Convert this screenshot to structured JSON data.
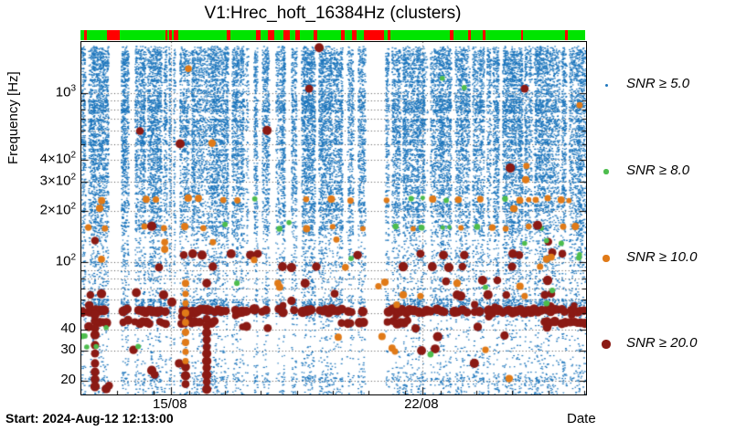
{
  "header": {
    "title": "V1:Hrec_hoft_16384Hz (clusters)"
  },
  "footer": {
    "start_label": "Start: 2024-Aug-12 12:13:00",
    "xaxis_title": "Date"
  },
  "colors": {
    "blue": "#1d76bd",
    "green": "#4dbd4d",
    "orange": "#e07a18",
    "dark_red": "#8b1a14",
    "bar_green": "#00e400",
    "bar_red": "#ff0000",
    "grid": "#222222",
    "axis": "#000000"
  },
  "yaxis": {
    "title": "Frequency [Hz]",
    "scale": "log",
    "min": 16.5,
    "max": 2000,
    "ticks": [
      {
        "base": "10",
        "sup": "3",
        "value": 1000
      },
      {
        "base": "4×10",
        "sup": "2",
        "value": 400
      },
      {
        "base": "3×10",
        "sup": "2",
        "value": 300
      },
      {
        "base": "2×10",
        "sup": "2",
        "value": 200
      },
      {
        "base": "10",
        "sup": "2",
        "value": 100
      },
      {
        "base": "40",
        "sup": "",
        "value": 40
      },
      {
        "base": "30",
        "sup": "",
        "value": 30
      },
      {
        "base": "20",
        "sup": "",
        "value": 20
      }
    ],
    "grid_values": [
      20,
      30,
      40,
      50,
      60,
      70,
      80,
      90,
      100,
      200,
      300,
      400,
      500,
      600,
      700,
      800,
      900,
      1000
    ],
    "major_values": [
      20,
      30,
      40,
      100,
      200,
      300,
      400,
      1000
    ]
  },
  "xaxis": {
    "span_days": 14.05,
    "ticks": [
      {
        "label": "15/08",
        "day": 2.49
      },
      {
        "label": "22/08",
        "day": 9.49
      }
    ],
    "minor_tick_every_days": 1
  },
  "legend": {
    "items": [
      {
        "label": "SNR ≥ 5.0",
        "color_key": "blue",
        "radius": 1.5,
        "y": 93
      },
      {
        "label": "SNR ≥ 8.0",
        "color_key": "green",
        "radius": 2.6,
        "y": 188
      },
      {
        "label": "SNR ≥ 10.0",
        "color_key": "orange",
        "radius": 3.6,
        "y": 283
      },
      {
        "label": "SNR ≥ 20.0",
        "color_key": "dark_red",
        "radius": 4.6,
        "y": 377
      }
    ]
  },
  "status_bar": {
    "on_color_key": "bar_green",
    "off_color_key": "bar_red",
    "off_segments": [
      [
        0.007,
        0.013
      ],
      [
        0.0525,
        0.0779
      ],
      [
        0.1685,
        0.1721
      ],
      [
        0.1757,
        0.1812
      ],
      [
        0.1848,
        0.1938
      ],
      [
        0.2899,
        0.2971
      ],
      [
        0.3478,
        0.3569
      ],
      [
        0.3714,
        0.3841
      ],
      [
        0.4022,
        0.4149
      ],
      [
        0.4257,
        0.4348
      ],
      [
        0.462,
        0.4692
      ],
      [
        0.5163,
        0.5235
      ],
      [
        0.538,
        0.5471
      ],
      [
        0.5616,
        0.6014
      ],
      [
        0.6087,
        0.6141
      ],
      [
        0.7319,
        0.7391
      ],
      [
        0.7681,
        0.7736
      ],
      [
        0.7971,
        0.8025
      ],
      [
        0.8732,
        0.8768
      ],
      [
        0.9601,
        0.9655
      ]
    ]
  },
  "chart_data": {
    "type": "scatter",
    "title": "V1:Hrec_hoft_16384Hz (clusters)",
    "xlabel": "Date",
    "ylabel": "Frequency [Hz]",
    "start_time": "2024-Aug-12 12:13:00",
    "x_span_days": 14.05,
    "ylim": [
      16.5,
      2000
    ],
    "grid": true,
    "legend_position": "right",
    "extra_data_gaps": [
      [
        0.0924,
        0.1051
      ],
      [
        0.3297,
        0.3406
      ],
      [
        0.6848,
        0.6902
      ],
      [
        0.8261,
        0.8333
      ]
    ],
    "noise": {
      "description": "SNR>=5 triggers: dense pixel noise, density per frequency band",
      "samples": 170000,
      "bands": [
        {
          "f": [
            500,
            1900
          ],
          "d": 0.6
        },
        {
          "f": [
            300,
            500
          ],
          "d": 0.55
        },
        {
          "f": [
            205,
            300
          ],
          "d": 0.5
        },
        {
          "f": [
            150,
            205
          ],
          "d": 0.42
        },
        {
          "f": [
            95,
            150
          ],
          "d": 0.22
        },
        {
          "f": [
            61,
            95
          ],
          "d": 0.12
        },
        {
          "f": [
            47,
            61
          ],
          "d": 0.5
        },
        {
          "f": [
            33,
            47
          ],
          "d": 0.09
        },
        {
          "f": [
            22.5,
            33
          ],
          "d": 0.07
        },
        {
          "f": [
            16.5,
            22.5
          ],
          "d": 0.2
        }
      ]
    },
    "persistent_lines": [
      {
        "freq": 235,
        "orange_fraction": 0.72
      },
      {
        "freq": 160,
        "orange_fraction": 0.7
      }
    ],
    "snr20_bands": [
      {
        "freq": 51.5,
        "coverage": 0.95,
        "radius": 5.0
      },
      {
        "freq": 44.2,
        "coverage": 0.58,
        "radius": 4.6
      }
    ],
    "snr20_points": [
      [
        6.62,
        1850
      ],
      [
        6.34,
        1060
      ],
      [
        12.34,
        1060
      ],
      [
        1.63,
        595
      ],
      [
        5.17,
        600
      ],
      [
        2.75,
        500
      ],
      [
        11.94,
        360
      ],
      [
        12.7,
        165
      ],
      [
        1.96,
        163
      ],
      [
        13.0,
        132
      ],
      [
        0.38,
        134
      ],
      [
        2.85,
        110
      ],
      [
        3.1,
        112
      ],
      [
        3.36,
        110
      ],
      [
        4.17,
        112
      ],
      [
        4.71,
        110
      ],
      [
        4.91,
        112
      ],
      [
        7.69,
        110
      ],
      [
        9.44,
        112
      ],
      [
        10.08,
        110
      ],
      [
        10.66,
        110
      ],
      [
        12.01,
        112
      ],
      [
        12.19,
        110
      ],
      [
        13.11,
        114
      ],
      [
        13.39,
        112
      ],
      [
        2.16,
        93
      ],
      [
        3.66,
        94
      ],
      [
        5.6,
        94
      ],
      [
        5.85,
        93
      ],
      [
        6.54,
        94
      ],
      [
        8.96,
        94
      ],
      [
        9.77,
        94
      ],
      [
        10.23,
        93
      ],
      [
        10.61,
        94
      ],
      [
        11.99,
        94
      ],
      [
        3.49,
        75
      ],
      [
        6.23,
        75
      ],
      [
        10.15,
        77
      ],
      [
        11.17,
        78
      ],
      [
        11.58,
        78
      ],
      [
        12.98,
        78
      ],
      [
        7.05,
        65
      ],
      [
        10.46,
        64
      ],
      [
        10.56,
        63
      ],
      [
        11.32,
        64
      ],
      [
        11.83,
        64
      ],
      [
        12.9,
        64
      ],
      [
        13.08,
        65
      ],
      [
        0.25,
        64
      ],
      [
        0.56,
        65
      ],
      [
        1.53,
        66
      ],
      [
        2.29,
        64
      ],
      [
        5.85,
        59
      ],
      [
        2.52,
        58
      ],
      [
        0.38,
        49
      ],
      [
        9.92,
        36.3
      ],
      [
        11.78,
        36.8
      ],
      [
        9.47,
        30
      ],
      [
        9.85,
        30.7
      ],
      [
        10.94,
        25.2
      ],
      [
        1.45,
        30.3
      ],
      [
        1.96,
        22.9
      ],
      [
        2.04,
        21.6
      ],
      [
        2.72,
        25.2
      ],
      [
        0.38,
        40.6
      ],
      [
        0.38,
        37.2
      ],
      [
        0.38,
        32.3
      ],
      [
        0.38,
        28.8
      ],
      [
        0.38,
        25.2
      ],
      [
        0.38,
        22.4
      ],
      [
        0.38,
        20.3
      ],
      [
        0.38,
        18.4
      ],
      [
        3.49,
        46
      ],
      [
        3.49,
        42
      ],
      [
        3.49,
        38.2
      ],
      [
        3.49,
        34.8
      ],
      [
        3.49,
        31.5
      ],
      [
        3.49,
        28.8
      ],
      [
        3.49,
        26
      ],
      [
        3.49,
        23.7
      ],
      [
        3.49,
        21.5
      ],
      [
        3.49,
        19.6
      ],
      [
        3.49,
        17.7
      ],
      [
        2.9,
        24
      ],
      [
        2.9,
        21.3
      ],
      [
        2.9,
        19
      ],
      [
        0.69,
        17.8
      ],
      [
        0.77,
        18.6
      ]
    ],
    "snr10_points": [
      [
        2.98,
        1390
      ],
      [
        13.87,
        845
      ],
      [
        12.39,
        370
      ],
      [
        12.37,
        307
      ],
      [
        3.64,
        505
      ],
      [
        0.51,
        208
      ],
      [
        12.04,
        207
      ],
      [
        0.56,
        104
      ],
      [
        2.32,
        131
      ],
      [
        2.32,
        119
      ],
      [
        3.66,
        131
      ],
      [
        4.81,
        103
      ],
      [
        7.1,
        136
      ],
      [
        12.95,
        104
      ],
      [
        13.08,
        107
      ],
      [
        5.47,
        75
      ],
      [
        5.52,
        71
      ],
      [
        7.35,
        93
      ],
      [
        12.77,
        94
      ],
      [
        8.27,
        72
      ],
      [
        8.45,
        76
      ],
      [
        10.46,
        75
      ],
      [
        12.21,
        72
      ],
      [
        12.34,
        63
      ],
      [
        8.96,
        64
      ],
      [
        9.44,
        63
      ],
      [
        8.78,
        56
      ],
      [
        7.15,
        36
      ],
      [
        8.37,
        36.3
      ],
      [
        8.65,
        31
      ],
      [
        8.73,
        29.6
      ],
      [
        11.25,
        30.3
      ],
      [
        11.91,
        20.5
      ],
      [
        2.9,
        75
      ],
      [
        2.9,
        65
      ],
      [
        2.9,
        57
      ],
      [
        2.9,
        50
      ],
      [
        2.9,
        44
      ],
      [
        2.9,
        38.5
      ],
      [
        2.9,
        33.5
      ],
      [
        2.9,
        29.5
      ],
      [
        2.9,
        26
      ]
    ],
    "snr8_points": [
      [
        10.05,
        1220
      ],
      [
        10.66,
        1075
      ],
      [
        12.95,
        134
      ],
      [
        12.34,
        129
      ],
      [
        13.36,
        129
      ],
      [
        13.87,
        111
      ],
      [
        7.51,
        105
      ],
      [
        13.85,
        106
      ],
      [
        5.78,
        171
      ],
      [
        4.0,
        167
      ],
      [
        4.33,
        75
      ],
      [
        11.25,
        71
      ],
      [
        13.11,
        68
      ],
      [
        12.95,
        57
      ],
      [
        0.03,
        36.4
      ],
      [
        0.1,
        36.6
      ],
      [
        0.15,
        31.5
      ],
      [
        0.41,
        31.7
      ],
      [
        1.58,
        31.7
      ],
      [
        0.69,
        41
      ],
      [
        9.72,
        28.5
      ]
    ]
  }
}
